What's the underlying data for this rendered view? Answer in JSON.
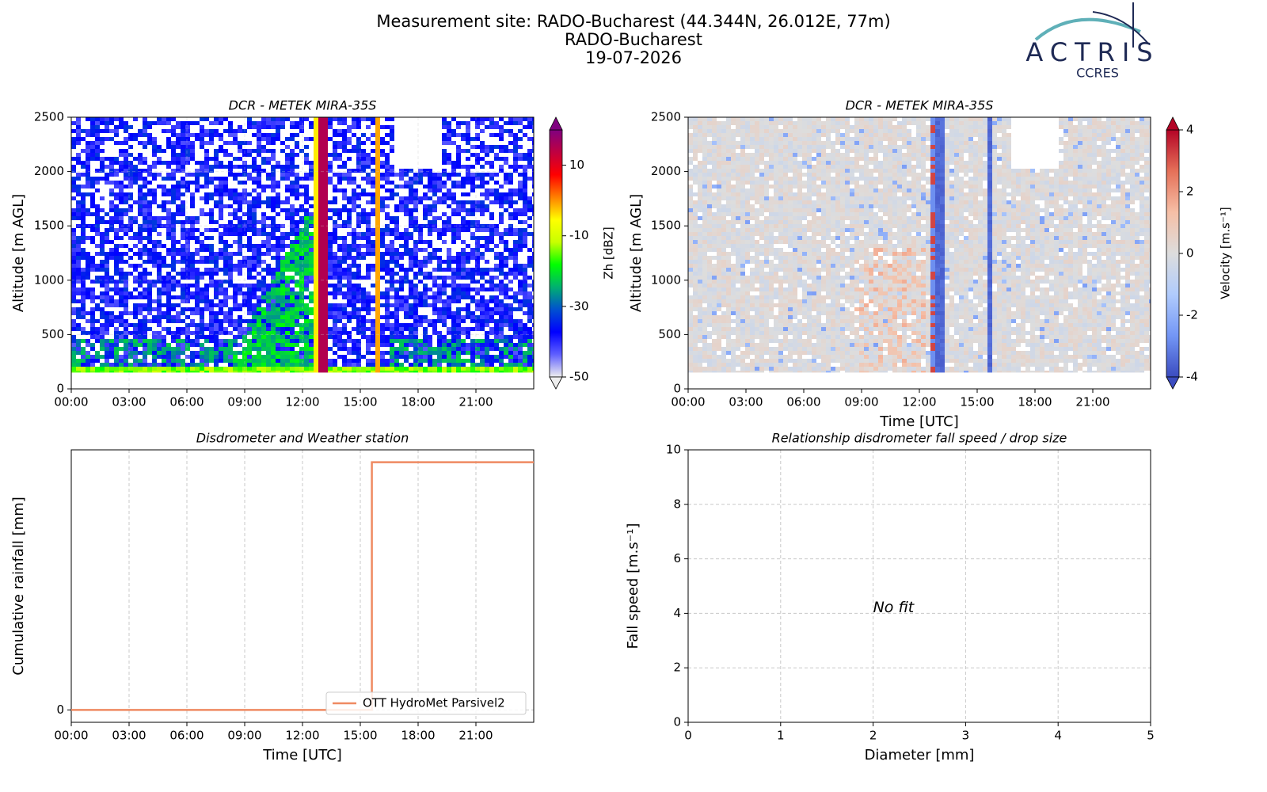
{
  "header": {
    "title": "Measurement site: RADO-Bucharest (44.344N, 26.012E, 77m)",
    "subtitle": "RADO-Bucharest",
    "date": "19-07-2026",
    "logo_text": "ACTRIS",
    "logo_subtext": "CCRES"
  },
  "chart_data": [
    {
      "type": "heatmap",
      "title": "DCR - METEK MIRA-35S",
      "ylabel": "Altitude [m AGL]",
      "xlim": [
        0,
        24
      ],
      "xticks": [
        {
          "value": 0,
          "label": "00:00"
        },
        {
          "value": 3,
          "label": "03:00"
        },
        {
          "value": 6,
          "label": "06:00"
        },
        {
          "value": 9,
          "label": "09:00"
        },
        {
          "value": 12,
          "label": "12:00"
        },
        {
          "value": 15,
          "label": "15:00"
        },
        {
          "value": 18,
          "label": "18:00"
        },
        {
          "value": 21,
          "label": "21:00"
        }
      ],
      "ylim": [
        0,
        2500
      ],
      "yticks": [
        0,
        500,
        1000,
        1500,
        2000,
        2500
      ],
      "grid": true,
      "colorbar": {
        "label": "Zh [dBZ]",
        "lim": [
          -50,
          20
        ],
        "ticks": [
          -50,
          -30,
          -10,
          10
        ],
        "colors": [
          "#eeeeee",
          "#6060ff",
          "#0000ff",
          "#0050d0",
          "#00b070",
          "#00ff00",
          "#c8ff00",
          "#ffff00",
          "#ff8000",
          "#ff0000",
          "#c00040",
          "#800080"
        ]
      }
    },
    {
      "type": "heatmap",
      "title": "DCR - METEK MIRA-35S",
      "ylabel": "Altitude [m AGL]",
      "xlabel": "Time [UTC]",
      "xlim": [
        0,
        24
      ],
      "xticks": [
        {
          "value": 0,
          "label": "00:00"
        },
        {
          "value": 3,
          "label": "03:00"
        },
        {
          "value": 6,
          "label": "06:00"
        },
        {
          "value": 9,
          "label": "09:00"
        },
        {
          "value": 12,
          "label": "12:00"
        },
        {
          "value": 15,
          "label": "15:00"
        },
        {
          "value": 18,
          "label": "18:00"
        },
        {
          "value": 21,
          "label": "21:00"
        }
      ],
      "ylim": [
        0,
        2500
      ],
      "yticks": [
        0,
        500,
        1000,
        1500,
        2000,
        2500
      ],
      "grid": false,
      "colorbar": {
        "label": "Velocity [m.s⁻¹]",
        "lim": [
          -4,
          4
        ],
        "ticks": [
          -4,
          -2,
          0,
          2,
          4
        ],
        "colors": [
          "#3b4cc0",
          "#7396f5",
          "#b0cbfc",
          "#dddddd",
          "#f6bfa6",
          "#e57058",
          "#b40426"
        ]
      }
    },
    {
      "type": "line",
      "title": "Disdrometer and Weather station",
      "ylabel": "Cumulative rainfall [mm]",
      "xlabel": "Time [UTC]",
      "xlim": [
        0,
        24
      ],
      "xticks": [
        {
          "value": 0,
          "label": "00:00"
        },
        {
          "value": 3,
          "label": "03:00"
        },
        {
          "value": 6,
          "label": "06:00"
        },
        {
          "value": 9,
          "label": "09:00"
        },
        {
          "value": 12,
          "label": "12:00"
        },
        {
          "value": 15,
          "label": "15:00"
        },
        {
          "value": 18,
          "label": "18:00"
        },
        {
          "value": 21,
          "label": "21:00"
        }
      ],
      "ylim": [
        -0.005,
        0.105
      ],
      "yticks": [
        0
      ],
      "grid": true,
      "legend": "lower right",
      "x": [
        0,
        15.6,
        15.6,
        24
      ],
      "series": [
        {
          "name": "OTT HydroMet Parsivel2",
          "color": "#ef8a62",
          "values": [
            0,
            0,
            0.1,
            0.1
          ]
        }
      ]
    },
    {
      "type": "scatter",
      "title": "Relationship disdrometer fall speed / drop size",
      "ylabel": "Fall speed [m.s⁻¹]",
      "xlabel": "Diameter [mm]",
      "xlim": [
        0,
        5
      ],
      "xticks": [
        0,
        1,
        2,
        3,
        4,
        5
      ],
      "ylim": [
        0,
        10
      ],
      "yticks": [
        0,
        2,
        4,
        6,
        8,
        10
      ],
      "grid": true,
      "annotations": [
        {
          "text": "No fit",
          "x": 2,
          "y": 4
        }
      ]
    }
  ]
}
